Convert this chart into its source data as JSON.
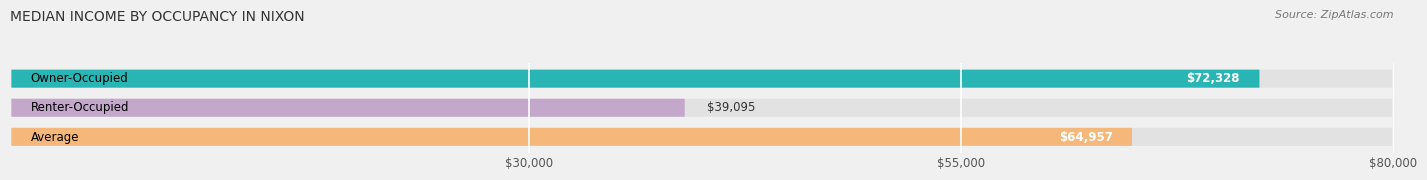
{
  "title": "MEDIAN INCOME BY OCCUPANCY IN NIXON",
  "source": "Source: ZipAtlas.com",
  "categories": [
    "Owner-Occupied",
    "Renter-Occupied",
    "Average"
  ],
  "values": [
    72328,
    39095,
    64957
  ],
  "bar_colors": [
    "#2ab5b5",
    "#c4a8cc",
    "#f5b87a"
  ],
  "bar_labels": [
    "$72,328",
    "$39,095",
    "$64,957"
  ],
  "xlim": [
    0,
    80000
  ],
  "xticks": [
    30000,
    55000,
    80000
  ],
  "xtick_labels": [
    "$30,000",
    "$55,000",
    "$80,000"
  ],
  "background_color": "#f0f0f0",
  "bar_background_color": "#e2e2e2",
  "title_fontsize": 10,
  "label_fontsize": 8.5,
  "source_fontsize": 8
}
